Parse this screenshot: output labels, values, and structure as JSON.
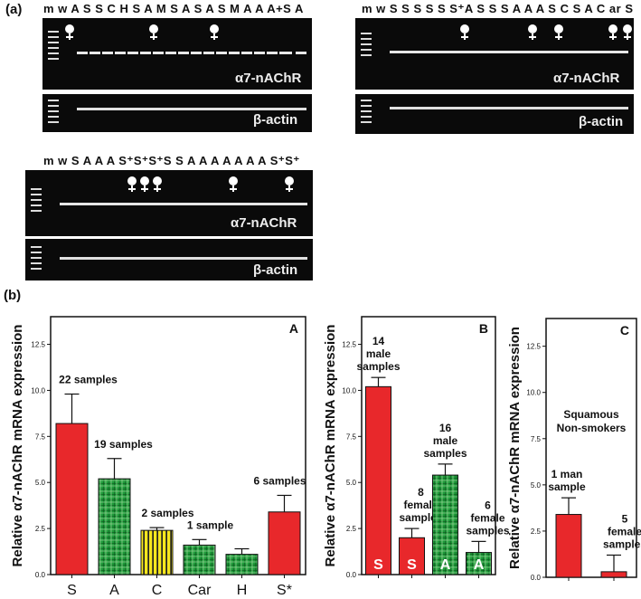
{
  "panel_labels": {
    "a": "(a)",
    "b": "(b)"
  },
  "gels": {
    "g1": {
      "lanes": "m w A S S C H S A M S A S A S M A A A+S A",
      "band_label": "α7-nAChR",
      "ref_label": "β-actin"
    },
    "g2": {
      "lanes": "m w S S S S S S⁺A S S S A A A S C S A C ar S",
      "band_label": "α7-nAChR",
      "ref_label": "β-actin"
    },
    "g3": {
      "lanes": "m w S A A A S⁺S⁺S⁺S S A A A A A A A S⁺S⁺",
      "band_label": "α7-nAChR",
      "ref_label": "β-actin"
    }
  },
  "chart_data": [
    {
      "type": "bar",
      "panel": "A",
      "ylabel": "Relative α7-nAChR mRNA expression",
      "ylim": [
        0,
        14
      ],
      "yticks": [
        "0.0",
        "2.5",
        "5.0",
        "7.5",
        "10.0",
        "12.5"
      ],
      "categories": [
        "S",
        "A",
        "C",
        "Car",
        "H",
        "S*"
      ],
      "values": [
        8.2,
        5.2,
        2.4,
        1.6,
        1.1,
        3.4
      ],
      "errors": [
        1.6,
        1.1,
        0.15,
        0.3,
        0.3,
        0.9
      ],
      "fills": [
        "red",
        "green-check",
        "yellow-stripe",
        "green-check",
        "green-check",
        "red"
      ],
      "annotations": [
        "22 samples",
        "19 samples",
        "2 samples",
        "1 sample",
        "",
        "6 samples"
      ]
    },
    {
      "type": "bar",
      "panel": "B",
      "ylabel": "Relative α7-nAChR mRNA expression",
      "ylim": [
        0,
        14
      ],
      "yticks": [
        "0.0",
        "2.5",
        "5.0",
        "7.5",
        "10.0",
        "12.5"
      ],
      "categories": [
        "S",
        "S",
        "A",
        "A"
      ],
      "values": [
        10.2,
        2.0,
        5.4,
        1.2
      ],
      "errors": [
        0.5,
        0.5,
        0.6,
        0.6
      ],
      "fills": [
        "red",
        "red",
        "green-check",
        "green-check"
      ],
      "annotations": [
        [
          "14",
          "male",
          "samples"
        ],
        [
          "8",
          "female",
          "samples"
        ],
        [
          "16",
          "male",
          "samples"
        ],
        [
          "6",
          "female",
          "samples"
        ]
      ]
    },
    {
      "type": "bar",
      "panel": "C",
      "ylabel": "Relative α7-nAChR mRNA expression",
      "ylim": [
        0,
        14
      ],
      "yticks": [
        "0.0",
        "2.5",
        "5.0",
        "7.5",
        "10.0",
        "12.5"
      ],
      "categories": [
        "",
        ""
      ],
      "values": [
        3.4,
        0.3
      ],
      "errors": [
        0.9,
        0.9
      ],
      "fills": [
        "red",
        "red"
      ],
      "annotations": [
        [
          "1 man",
          "sample"
        ],
        [
          "5",
          "female",
          "samples"
        ]
      ],
      "note": [
        "Squamous",
        "Non-smokers"
      ]
    }
  ],
  "colors": {
    "red": "#e8282b",
    "green": "#1e9b3a",
    "yellow": "#f5e61e",
    "female_marker": "#ffffff",
    "underline": "#c060c0"
  }
}
